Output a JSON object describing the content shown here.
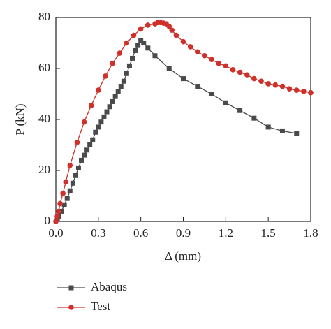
{
  "chart_data": {
    "type": "line",
    "x_label": "Δ (mm)",
    "y_label": "P (kN)",
    "xlim": [
      0,
      1.8
    ],
    "ylim": [
      0,
      80
    ],
    "xticks": [
      {
        "value": 0,
        "label": "0.0"
      },
      0.3,
      0.6,
      0.9,
      1.2,
      1.5,
      1.8
    ],
    "yticks": [
      0,
      20,
      40,
      60,
      80
    ],
    "series": [
      {
        "name": "Abaqus",
        "color": "#4a4a4a",
        "marker": "square",
        "x": [
          0.01,
          0.02,
          0.04,
          0.06,
          0.08,
          0.1,
          0.12,
          0.14,
          0.16,
          0.18,
          0.2,
          0.22,
          0.24,
          0.26,
          0.28,
          0.3,
          0.32,
          0.34,
          0.36,
          0.38,
          0.4,
          0.42,
          0.44,
          0.46,
          0.48,
          0.5,
          0.52,
          0.54,
          0.56,
          0.58,
          0.6,
          0.62,
          0.65,
          0.7,
          0.8,
          0.9,
          1.0,
          1.1,
          1.2,
          1.3,
          1.4,
          1.5,
          1.6,
          1.7
        ],
        "values": [
          1,
          2,
          4,
          6.5,
          9,
          12,
          15,
          18,
          21,
          24,
          26,
          28,
          30,
          32,
          35,
          37,
          39,
          41,
          43,
          45,
          47,
          49,
          51,
          53,
          55,
          58,
          61,
          64,
          67,
          69,
          71,
          70,
          68,
          65,
          60,
          56,
          53,
          50,
          46.5,
          43.5,
          40.5,
          37,
          35.5,
          34.5
        ]
      },
      {
        "name": "Test",
        "color": "#d0302a",
        "marker": "circle",
        "x": [
          0,
          0.01,
          0.02,
          0.03,
          0.05,
          0.07,
          0.1,
          0.15,
          0.2,
          0.25,
          0.3,
          0.35,
          0.4,
          0.45,
          0.5,
          0.55,
          0.6,
          0.65,
          0.7,
          0.72,
          0.74,
          0.76,
          0.78,
          0.8,
          0.82,
          0.85,
          0.9,
          0.95,
          1.0,
          1.05,
          1.1,
          1.15,
          1.2,
          1.25,
          1.3,
          1.35,
          1.4,
          1.45,
          1.5,
          1.55,
          1.6,
          1.65,
          1.7,
          1.75,
          1.8
        ],
        "values": [
          0,
          2,
          4,
          7,
          11,
          15.5,
          22,
          31,
          39,
          45.5,
          51.5,
          57,
          62,
          66,
          70,
          73,
          75.5,
          77,
          77.5,
          78,
          78,
          77.8,
          77.5,
          76.5,
          75,
          73,
          70.5,
          68.5,
          66.5,
          65,
          63.5,
          62,
          61,
          59.5,
          58.5,
          57.5,
          56,
          55,
          54,
          53.5,
          53,
          52,
          51.5,
          51,
          50.5
        ]
      }
    ]
  }
}
